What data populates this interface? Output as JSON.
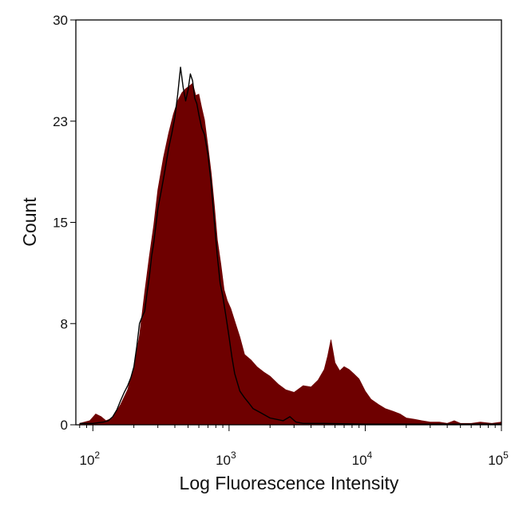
{
  "chart_data": {
    "type": "area",
    "xlabel": "Log Fluorescence Intensity",
    "ylabel": "Count",
    "xscale": "log",
    "xlim": [
      75,
      100000
    ],
    "ylim": [
      0,
      30
    ],
    "grid": false,
    "x_ticks": [
      {
        "value": 100,
        "base": "10",
        "exp": "2"
      },
      {
        "value": 1000,
        "base": "10",
        "exp": "3"
      },
      {
        "value": 10000,
        "base": "10",
        "exp": "4"
      },
      {
        "value": 100000,
        "base": "10",
        "exp": "5"
      }
    ],
    "y_ticks": [
      {
        "value": 0,
        "label": "0"
      },
      {
        "value": 7.5,
        "label": "8"
      },
      {
        "value": 15,
        "label": "15"
      },
      {
        "value": 22.5,
        "label": "23"
      },
      {
        "value": 30,
        "label": "30"
      }
    ],
    "series": [
      {
        "style": "filled",
        "color": "#6e0000",
        "x": [
          80,
          95,
          105,
          115,
          125,
          140,
          160,
          180,
          200,
          220,
          240,
          260,
          280,
          300,
          330,
          360,
          390,
          420,
          450,
          480,
          510,
          540,
          570,
          600,
          630,
          660,
          700,
          740,
          780,
          820,
          870,
          920,
          970,
          1030,
          1100,
          1200,
          1300,
          1450,
          1600,
          1800,
          2000,
          2300,
          2600,
          3000,
          3500,
          4000,
          4500,
          5000,
          5300,
          5600,
          6000,
          6500,
          7000,
          7600,
          8200,
          9000,
          10000,
          11000,
          12500,
          14000,
          16000,
          18000,
          20000,
          23000,
          26000,
          30000,
          35000,
          40000,
          45000,
          50000,
          60000,
          70000,
          85000,
          100000
        ],
        "values": [
          0.1,
          0.3,
          0.8,
          0.6,
          0.3,
          0.5,
          1.5,
          2.6,
          4.3,
          6.6,
          9.8,
          12.5,
          14.8,
          17.4,
          19.8,
          21.6,
          23.0,
          24.0,
          24.6,
          24.9,
          25.1,
          25.3,
          24.4,
          24.5,
          23.5,
          22.6,
          20.6,
          18.6,
          16.2,
          13.7,
          11.9,
          10.0,
          9.2,
          8.6,
          7.7,
          6.5,
          5.2,
          4.8,
          4.3,
          3.9,
          3.6,
          3.0,
          2.6,
          2.4,
          2.9,
          2.8,
          3.3,
          4.1,
          5.1,
          6.3,
          4.6,
          4.0,
          4.3,
          4.1,
          3.8,
          3.4,
          2.5,
          1.9,
          1.5,
          1.2,
          1.0,
          0.8,
          0.5,
          0.4,
          0.3,
          0.2,
          0.2,
          0.1,
          0.3,
          0.1,
          0.1,
          0.2,
          0.1,
          0.2
        ]
      },
      {
        "style": "outline",
        "color": "#000000",
        "x": [
          80,
          100,
          120,
          130,
          140,
          150,
          160,
          170,
          180,
          190,
          200,
          210,
          220,
          230,
          240,
          250,
          260,
          270,
          280,
          300,
          320,
          340,
          360,
          380,
          400,
          420,
          440,
          460,
          480,
          500,
          520,
          540,
          560,
          580,
          600,
          630,
          660,
          700,
          740,
          780,
          820,
          860,
          900,
          950,
          1000,
          1050,
          1100,
          1200,
          1300,
          1400,
          1500,
          1700,
          2000,
          2500,
          2800,
          3100,
          3500,
          5000,
          10000,
          100000
        ],
        "values": [
          0.1,
          0.1,
          0.2,
          0.3,
          0.6,
          1.1,
          1.8,
          2.4,
          2.9,
          3.5,
          4.3,
          5.8,
          7.5,
          8.0,
          8.4,
          9.8,
          11.0,
          12.5,
          13.5,
          16.0,
          17.5,
          19.0,
          20.5,
          21.6,
          22.8,
          24.5,
          26.5,
          25.0,
          24.0,
          24.8,
          26.0,
          25.5,
          24.2,
          23.8,
          23.0,
          22.0,
          21.5,
          20.0,
          17.8,
          15.0,
          12.5,
          10.5,
          9.5,
          8.0,
          6.5,
          5.0,
          3.8,
          2.5,
          2.0,
          1.6,
          1.2,
          0.9,
          0.5,
          0.3,
          0.6,
          0.2,
          0.1,
          0.1,
          0.05,
          0.05
        ]
      }
    ]
  }
}
